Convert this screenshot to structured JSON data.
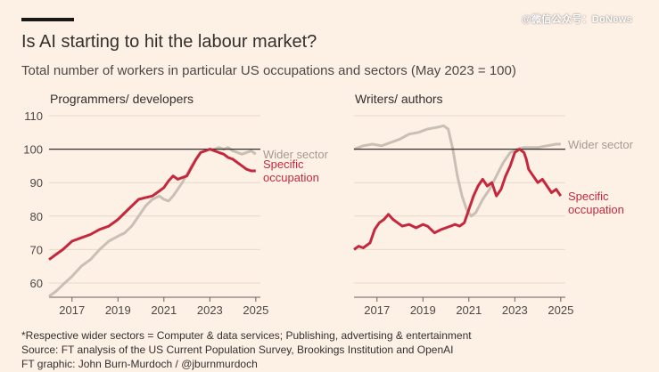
{
  "header": {
    "title": "Is AI starting to hit the labour market?",
    "subtitle": "Total number of workers in particular US occupations and sectors (May 2023 = 100)",
    "watermark": "@微信公众号：DoNews"
  },
  "footer": {
    "note": "*Respective wider sectors = Computer & data services; Publishing, advertising & entertainment",
    "source": "Source: FT analysis of the US Current Population Survey, Brookings Institution and OpenAI",
    "credit": "FT graphic: John Burn-Murdoch / @jburnmurdoch"
  },
  "colors": {
    "background": "#fdf1e6",
    "specific": "#c5283d",
    "wider": "#c9bfb5",
    "grid": "#e6d8c9",
    "reference": "#33302e"
  },
  "chart_data": [
    {
      "type": "line",
      "title": "Programmers/ developers",
      "xlim": [
        2016.0,
        2025.2
      ],
      "ylim": [
        55,
        112
      ],
      "yticks": [
        60,
        70,
        80,
        90,
        100,
        110
      ],
      "xticks": [
        2017,
        2019,
        2021,
        2023,
        2025
      ],
      "reference_line": 100,
      "series": [
        {
          "name": "Wider sector",
          "key": "wider",
          "x": [
            2016.0,
            2016.3,
            2016.6,
            2017.0,
            2017.4,
            2017.8,
            2018.2,
            2018.6,
            2019.0,
            2019.3,
            2019.6,
            2019.9,
            2020.2,
            2020.5,
            2020.8,
            2021.0,
            2021.2,
            2021.4,
            2021.6,
            2021.8,
            2022.0,
            2022.2,
            2022.4,
            2022.6,
            2022.8,
            2023.0,
            2023.2,
            2023.4,
            2023.6,
            2023.8,
            2024.0,
            2024.2,
            2024.4,
            2024.6,
            2024.8,
            2025.0
          ],
          "values": [
            56,
            57.5,
            59.5,
            62,
            65,
            67,
            70,
            72.5,
            74,
            75,
            77,
            80,
            83,
            85,
            86,
            85,
            84.5,
            86,
            88,
            90,
            92.5,
            95,
            97,
            99,
            99.5,
            100,
            100,
            100.5,
            100,
            100.5,
            99.5,
            99,
            98.5,
            99,
            99.5,
            98.5
          ]
        },
        {
          "name": "Specific occupation",
          "key": "specific",
          "x": [
            2016.0,
            2016.3,
            2016.6,
            2017.0,
            2017.4,
            2017.8,
            2018.2,
            2018.6,
            2019.0,
            2019.3,
            2019.6,
            2019.9,
            2020.2,
            2020.5,
            2020.8,
            2021.0,
            2021.2,
            2021.4,
            2021.6,
            2021.8,
            2022.0,
            2022.2,
            2022.4,
            2022.6,
            2022.8,
            2023.0,
            2023.2,
            2023.4,
            2023.6,
            2023.8,
            2024.0,
            2024.2,
            2024.4,
            2024.6,
            2024.8,
            2025.0
          ],
          "values": [
            67,
            68.5,
            70,
            72.5,
            73.5,
            74.5,
            76,
            77,
            79,
            81,
            83,
            85,
            85.5,
            86,
            87.5,
            88.5,
            90.5,
            92,
            91,
            91.5,
            92,
            94.5,
            97,
            99,
            99.5,
            100,
            99.5,
            99,
            98.5,
            97.5,
            97,
            96,
            95,
            94,
            93.5,
            93.5
          ]
        }
      ]
    },
    {
      "type": "line",
      "title": "Writers/ authors",
      "xlim": [
        2016.0,
        2025.2
      ],
      "ylim": [
        55,
        112
      ],
      "yticks": [
        60,
        70,
        80,
        90,
        100,
        110
      ],
      "xticks": [
        2017,
        2019,
        2021,
        2023,
        2025
      ],
      "reference_line": 100,
      "series": [
        {
          "name": "Wider sector",
          "key": "wider",
          "x": [
            2016.0,
            2016.4,
            2016.8,
            2017.2,
            2017.6,
            2018.0,
            2018.4,
            2018.8,
            2019.2,
            2019.6,
            2019.9,
            2020.1,
            2020.3,
            2020.5,
            2020.7,
            2020.9,
            2021.1,
            2021.3,
            2021.6,
            2021.9,
            2022.2,
            2022.5,
            2022.8,
            2023.1,
            2023.4,
            2023.7,
            2024.0,
            2024.4,
            2024.8,
            2025.0
          ],
          "values": [
            100,
            101,
            101.5,
            101,
            102,
            103,
            104.5,
            105,
            106,
            106.5,
            107,
            106,
            100,
            92,
            86,
            82,
            80,
            81,
            85,
            88,
            92,
            96,
            99,
            100,
            100.5,
            100.5,
            100.5,
            101,
            101.5,
            101.5
          ]
        },
        {
          "name": "Specific occupation",
          "key": "specific",
          "x": [
            2016.0,
            2016.2,
            2016.4,
            2016.7,
            2016.9,
            2017.1,
            2017.3,
            2017.5,
            2017.7,
            2017.9,
            2018.1,
            2018.4,
            2018.7,
            2019.0,
            2019.2,
            2019.5,
            2019.8,
            2020.0,
            2020.2,
            2020.4,
            2020.6,
            2020.8,
            2021.0,
            2021.2,
            2021.4,
            2021.6,
            2021.8,
            2022.0,
            2022.2,
            2022.4,
            2022.6,
            2022.8,
            2023.0,
            2023.2,
            2023.4,
            2023.5,
            2023.6,
            2023.8,
            2024.0,
            2024.2,
            2024.4,
            2024.6,
            2024.8,
            2025.0
          ],
          "values": [
            70,
            71,
            70.5,
            72,
            76,
            78,
            79,
            80.5,
            79,
            78,
            77,
            77.5,
            76.5,
            77.5,
            77,
            75,
            76,
            76.5,
            77,
            77.5,
            77,
            78,
            82,
            86,
            89,
            91,
            89,
            90,
            86,
            88,
            92,
            95,
            99,
            100,
            99,
            97,
            94,
            92,
            90,
            91,
            89,
            87,
            88,
            86
          ]
        }
      ]
    }
  ],
  "labels": {
    "wider_label": "Wider sector",
    "specific_line1": "Specific",
    "specific_line2": "occupation"
  }
}
